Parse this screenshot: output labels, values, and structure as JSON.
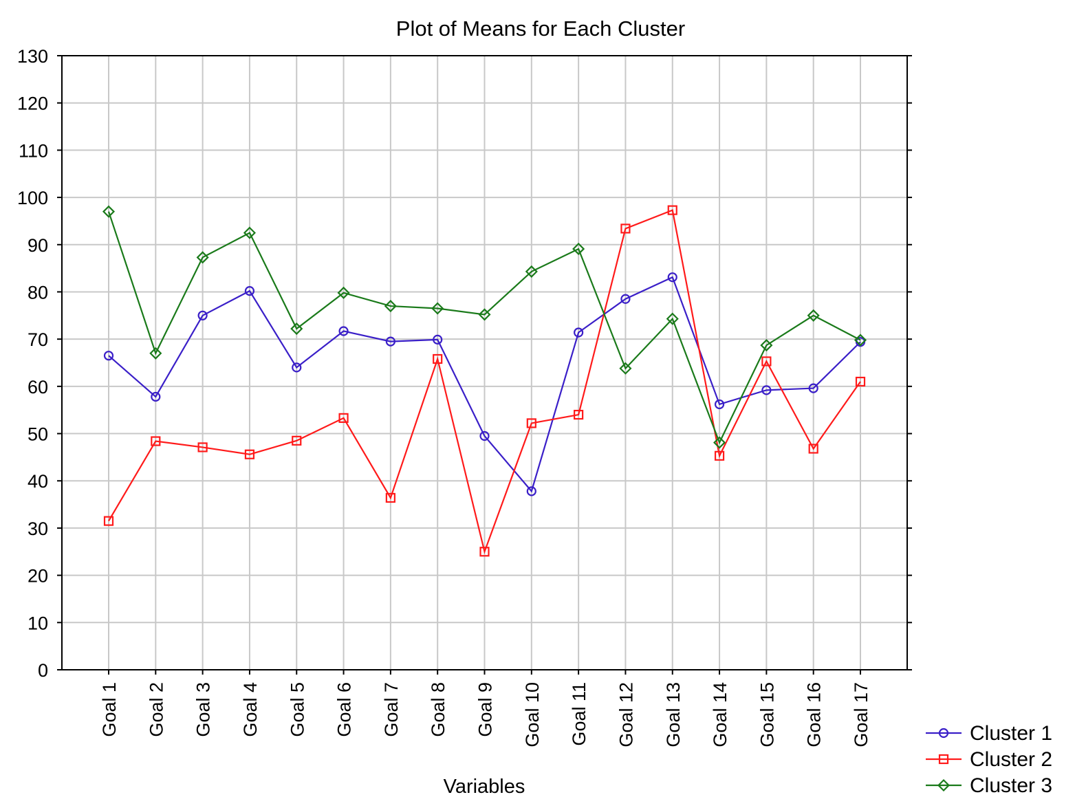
{
  "chart_data": {
    "type": "line",
    "title": "Plot of Means for Each Cluster",
    "xlabel": "Variables",
    "ylabel": "",
    "ylim": [
      0,
      130
    ],
    "yticks": [
      0,
      10,
      20,
      30,
      40,
      50,
      60,
      70,
      80,
      90,
      100,
      110,
      120,
      130
    ],
    "grid": true,
    "legend_position": "bottom-right",
    "categories": [
      "Goal 1",
      "Goal 2",
      "Goal 3",
      "Goal 4",
      "Goal 5",
      "Goal 6",
      "Goal 7",
      "Goal 8",
      "Goal 9",
      "Goal 10",
      "Goal 11",
      "Goal 12",
      "Goal 13",
      "Goal 14",
      "Goal 15",
      "Goal 16",
      "Goal 17"
    ],
    "series": [
      {
        "name": "Cluster  1",
        "color": "#3a1fc8",
        "marker": "circle",
        "values": [
          66.5,
          57.8,
          75,
          80.2,
          64,
          71.7,
          69.5,
          69.9,
          49.5,
          37.8,
          71.4,
          78.5,
          83.1,
          56.2,
          59.2,
          59.6,
          69.4
        ]
      },
      {
        "name": "Cluster  2",
        "color": "#ff1a1a",
        "marker": "square",
        "values": [
          31.5,
          48.4,
          47.1,
          45.6,
          48.5,
          53.3,
          36.4,
          65.8,
          25,
          52.2,
          54,
          93.4,
          97.3,
          45.3,
          65.3,
          46.8,
          61
        ]
      },
      {
        "name": "Cluster  3",
        "color": "#1a7a1a",
        "marker": "diamond",
        "values": [
          97,
          67,
          87.3,
          92.5,
          72.2,
          79.8,
          77,
          76.5,
          75.2,
          84.3,
          89.1,
          63.8,
          74.3,
          48.1,
          68.7,
          75,
          69.8
        ]
      }
    ]
  }
}
